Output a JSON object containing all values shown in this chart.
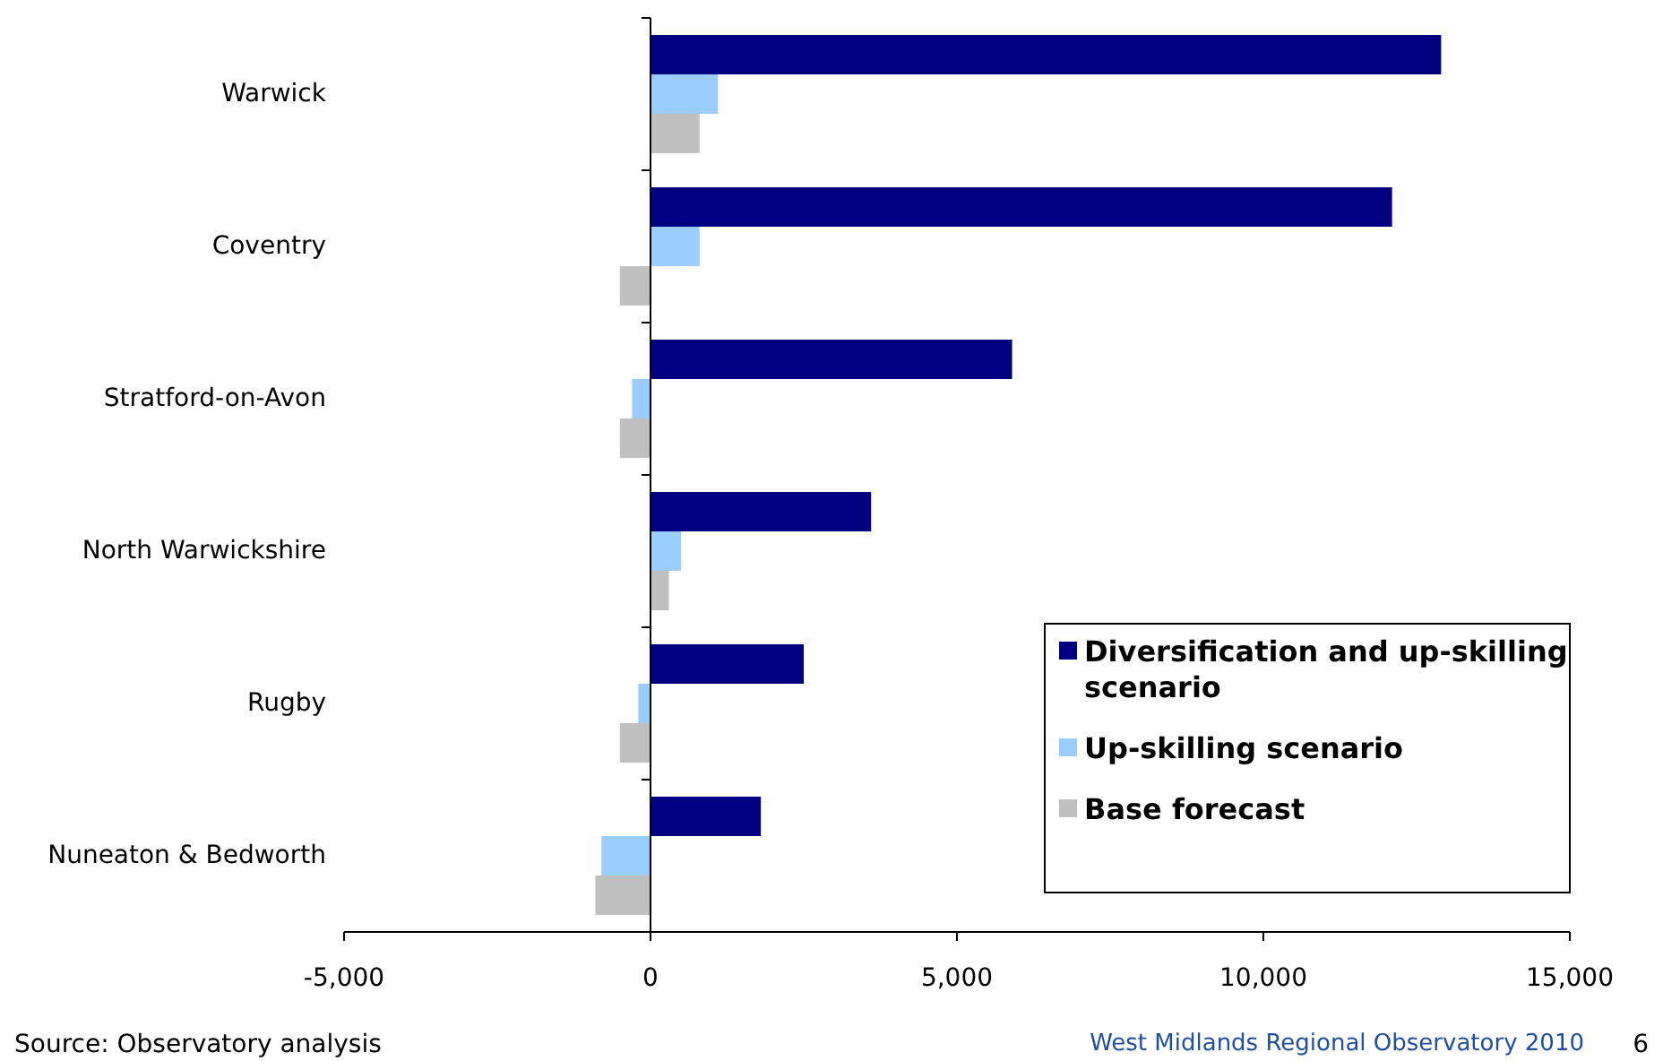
{
  "chart_data": {
    "type": "bar",
    "orientation": "horizontal",
    "categories": [
      "Warwick",
      "Coventry",
      "Stratford-on-Avon",
      "North Warwickshire",
      "Rugby",
      "Nuneaton & Bedworth"
    ],
    "series": [
      {
        "name": "Diversification and up-skilling scenario",
        "color": "#000080",
        "values": [
          12900,
          12100,
          5900,
          3600,
          2500,
          1800
        ]
      },
      {
        "name": "Up-skilling scenario",
        "color": "#99ccff",
        "values": [
          1100,
          800,
          -300,
          500,
          -200,
          -800
        ]
      },
      {
        "name": "Base forecast",
        "color": "#c0c0c0",
        "values": [
          800,
          -500,
          -500,
          300,
          -500,
          -900
        ]
      }
    ],
    "xlim": [
      -5000,
      15000
    ],
    "xticks": [
      {
        "value": -5000,
        "label": "-5,000"
      },
      0,
      {
        "value": 5000,
        "label": "5,000"
      },
      {
        "value": 10000,
        "label": "10,000"
      },
      {
        "value": 15000,
        "label": "15,000"
      }
    ],
    "legend": "bottom right",
    "annotations": [
      "Source: Observatory analysis",
      "West Midlands Regional Observatory 2010",
      "6"
    ]
  }
}
